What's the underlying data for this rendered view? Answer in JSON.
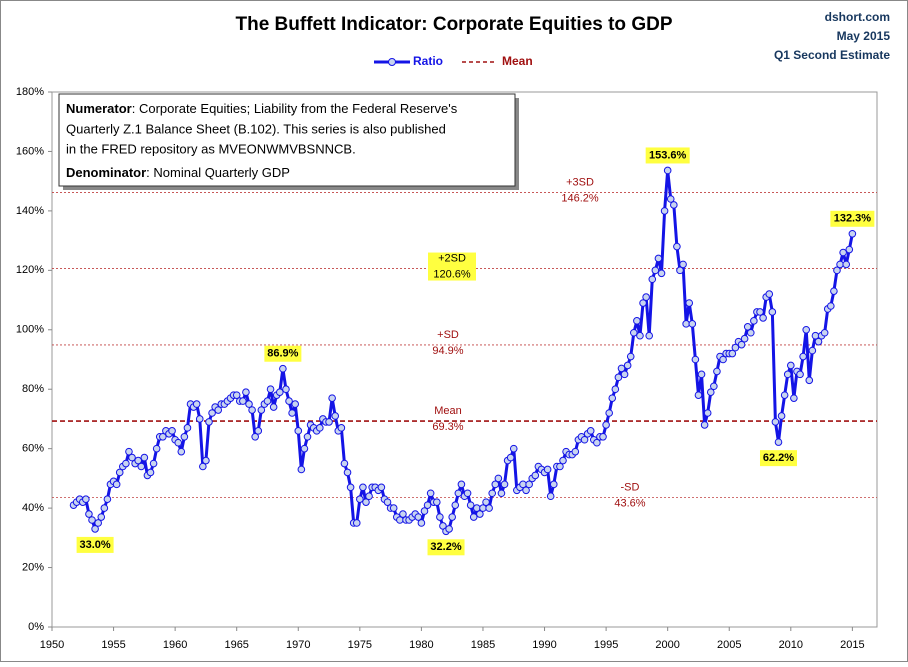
{
  "chart_data": {
    "type": "line",
    "title": "The Buffett Indicator: Corporate Equities to GDP",
    "source_lines": [
      "dshort.com",
      "May 2015",
      "Q1 Second Estimate"
    ],
    "note": {
      "numerator_label": "Numerator",
      "numerator_lines": [
        ": Corporate Equities; Liability from the Federal Reserve's",
        "Quarterly Z.1 Balance Sheet (B.102). This series is also published",
        "in the FRED repository  as MVEONWMVBSNNCB."
      ],
      "denominator_label": "Denominator",
      "denominator_text": ": Nominal Quarterly GDP"
    },
    "xlim": [
      1950,
      2017
    ],
    "xticks": [
      1950,
      1955,
      1960,
      1965,
      1970,
      1975,
      1980,
      1985,
      1990,
      1995,
      2000,
      2005,
      2010,
      2015
    ],
    "ylim": [
      0,
      180
    ],
    "yticks": [
      {
        "value": 0,
        "label": "0%"
      },
      {
        "value": 20,
        "label": "20%"
      },
      {
        "value": 40,
        "label": "40%"
      },
      {
        "value": 60,
        "label": "60%"
      },
      {
        "value": 80,
        "label": "80%"
      },
      {
        "value": 100,
        "label": "100%"
      },
      {
        "value": 120,
        "label": "120%"
      },
      {
        "value": 140,
        "label": "140%"
      },
      {
        "value": 160,
        "label": "160%"
      },
      {
        "value": 180,
        "label": "180%"
      }
    ],
    "x": [
      1951.75,
      1952,
      1952.25,
      1952.5,
      1952.75,
      1953,
      1953.25,
      1953.5,
      1953.75,
      1954,
      1954.25,
      1954.5,
      1954.75,
      1955,
      1955.25,
      1955.5,
      1955.75,
      1956,
      1956.25,
      1956.5,
      1956.75,
      1957,
      1957.25,
      1957.5,
      1957.75,
      1958,
      1958.25,
      1958.5,
      1958.75,
      1959,
      1959.25,
      1959.5,
      1959.75,
      1960,
      1960.25,
      1960.5,
      1960.75,
      1961,
      1961.25,
      1961.5,
      1961.75,
      1962,
      1962.25,
      1962.5,
      1962.75,
      1963,
      1963.25,
      1963.5,
      1963.75,
      1964,
      1964.25,
      1964.5,
      1964.75,
      1965,
      1965.25,
      1965.5,
      1965.75,
      1966,
      1966.25,
      1966.5,
      1966.75,
      1967,
      1967.25,
      1967.5,
      1967.75,
      1968,
      1968.25,
      1968.5,
      1968.75,
      1969,
      1969.25,
      1969.5,
      1969.75,
      1970,
      1970.25,
      1970.5,
      1970.75,
      1971,
      1971.25,
      1971.5,
      1971.75,
      1972,
      1972.25,
      1972.5,
      1972.75,
      1973,
      1973.25,
      1973.5,
      1973.75,
      1974,
      1974.25,
      1974.5,
      1974.75,
      1975,
      1975.25,
      1975.5,
      1975.75,
      1976,
      1976.25,
      1976.5,
      1976.75,
      1977,
      1977.25,
      1977.5,
      1977.75,
      1978,
      1978.25,
      1978.5,
      1978.75,
      1979,
      1979.25,
      1979.5,
      1979.75,
      1980,
      1980.25,
      1980.5,
      1980.75,
      1981,
      1981.25,
      1981.5,
      1981.75,
      1982,
      1982.25,
      1982.5,
      1982.75,
      1983,
      1983.25,
      1983.5,
      1983.75,
      1984,
      1984.25,
      1984.5,
      1984.75,
      1985,
      1985.25,
      1985.5,
      1985.75,
      1986,
      1986.25,
      1986.5,
      1986.75,
      1987,
      1987.25,
      1987.5,
      1987.75,
      1988,
      1988.25,
      1988.5,
      1988.75,
      1989,
      1989.25,
      1989.5,
      1989.75,
      1990,
      1990.25,
      1990.5,
      1990.75,
      1991,
      1991.25,
      1991.5,
      1991.75,
      1992,
      1992.25,
      1992.5,
      1992.75,
      1993,
      1993.25,
      1993.5,
      1993.75,
      1994,
      1994.25,
      1994.5,
      1994.75,
      1995,
      1995.25,
      1995.5,
      1995.75,
      1996,
      1996.25,
      1996.5,
      1996.75,
      1997,
      1997.25,
      1997.5,
      1997.75,
      1998,
      1998.25,
      1998.5,
      1998.75,
      1999,
      1999.25,
      1999.5,
      1999.75,
      2000,
      2000.25,
      2000.5,
      2000.75,
      2001,
      2001.25,
      2001.5,
      2001.75,
      2002,
      2002.25,
      2002.5,
      2002.75,
      2003,
      2003.25,
      2003.5,
      2003.75,
      2004,
      2004.25,
      2004.5,
      2004.75,
      2005,
      2005.25,
      2005.5,
      2005.75,
      2006,
      2006.25,
      2006.5,
      2006.75,
      2007,
      2007.25,
      2007.5,
      2007.75,
      2008,
      2008.25,
      2008.5,
      2008.75,
      2009,
      2009.25,
      2009.5,
      2009.75,
      2010,
      2010.25,
      2010.5,
      2010.75,
      2011,
      2011.25,
      2011.5,
      2011.75,
      2012,
      2012.25,
      2012.5,
      2012.75,
      2013,
      2013.25,
      2013.5,
      2013.75,
      2014,
      2014.25,
      2014.5,
      2014.75,
      2015
    ],
    "series": [
      {
        "name": "Ratio",
        "color": "#1414e6",
        "values": [
          41,
          42,
          43,
          42,
          43,
          38,
          36,
          33,
          35,
          37,
          40,
          43,
          48,
          49,
          48,
          52,
          54,
          55,
          59,
          57,
          55,
          56,
          54,
          57,
          51,
          52,
          55,
          60,
          64,
          64,
          66,
          65,
          66,
          63,
          62,
          59,
          64,
          67,
          75,
          74,
          75,
          70,
          54,
          56,
          69,
          72,
          74,
          73,
          75,
          75,
          76,
          77,
          78,
          78,
          76,
          76,
          79,
          75,
          73,
          64,
          66,
          73,
          75,
          76,
          80,
          74,
          78,
          79,
          86.9,
          80,
          76,
          72,
          75,
          66,
          53,
          60,
          64,
          68,
          67,
          66,
          67,
          70,
          69,
          69,
          77,
          71,
          66,
          67,
          55,
          52,
          47,
          35,
          35,
          43,
          47,
          42,
          44,
          47,
          47,
          46,
          47,
          43,
          42,
          40,
          40,
          37,
          36,
          38,
          36,
          36,
          37,
          38,
          37,
          35,
          39,
          41,
          45,
          42,
          42,
          37,
          34,
          32.2,
          33,
          37,
          41,
          45,
          48,
          44,
          45,
          41,
          37,
          40,
          38,
          40,
          42,
          40,
          45,
          48,
          50,
          45,
          48,
          56,
          57,
          60,
          46,
          47,
          48,
          46,
          48,
          50,
          51,
          54,
          53,
          52,
          53,
          44,
          48,
          54,
          54,
          56,
          59,
          58,
          58,
          59,
          63,
          64,
          63,
          65,
          66,
          63,
          62,
          64,
          64,
          68,
          72,
          77,
          80,
          84,
          87,
          85,
          88,
          91,
          99,
          103,
          98,
          109,
          111,
          98,
          117,
          120,
          124,
          119,
          140,
          153.6,
          144,
          142,
          128,
          120,
          122,
          102,
          109,
          102,
          90,
          78,
          85,
          68,
          72,
          79,
          81,
          86,
          91,
          90,
          92,
          92,
          92,
          94,
          96,
          95,
          97,
          101,
          99,
          103,
          106,
          106,
          104,
          111,
          112,
          106,
          69,
          62.2,
          71,
          78,
          85,
          88,
          77,
          86,
          85,
          91,
          100,
          83,
          93,
          98,
          96,
          98,
          99,
          107,
          108,
          113,
          120,
          122,
          126,
          122,
          127,
          132.3
        ]
      }
    ],
    "reference_lines": [
      {
        "label": "+3SD",
        "value": 146.2,
        "value_label": "146.2%"
      },
      {
        "label": "+2SD",
        "value": 120.6,
        "value_label": "120.6%"
      },
      {
        "label": "+SD",
        "value": 94.9,
        "value_label": "94.9%"
      },
      {
        "label": "Mean",
        "value": 69.3,
        "value_label": "69.3%",
        "color": "#a01010"
      },
      {
        "label": "-SD",
        "value": 43.6,
        "value_label": "43.6%"
      }
    ],
    "annotations": [
      {
        "label": "33.0%",
        "x": 1953.5,
        "value": 33,
        "placement": "below"
      },
      {
        "label": "86.9%",
        "x": 1968.75,
        "value": 86.9,
        "placement": "above"
      },
      {
        "label": "32.2%",
        "x": 1982,
        "value": 32.2,
        "placement": "below"
      },
      {
        "label": "153.6%",
        "x": 2000,
        "value": 153.6,
        "placement": "above"
      },
      {
        "label": "62.2%",
        "x": 2009,
        "value": 62.2,
        "placement": "below"
      },
      {
        "label": "132.3%",
        "x": 2015,
        "value": 132.3,
        "placement": "above"
      }
    ]
  }
}
